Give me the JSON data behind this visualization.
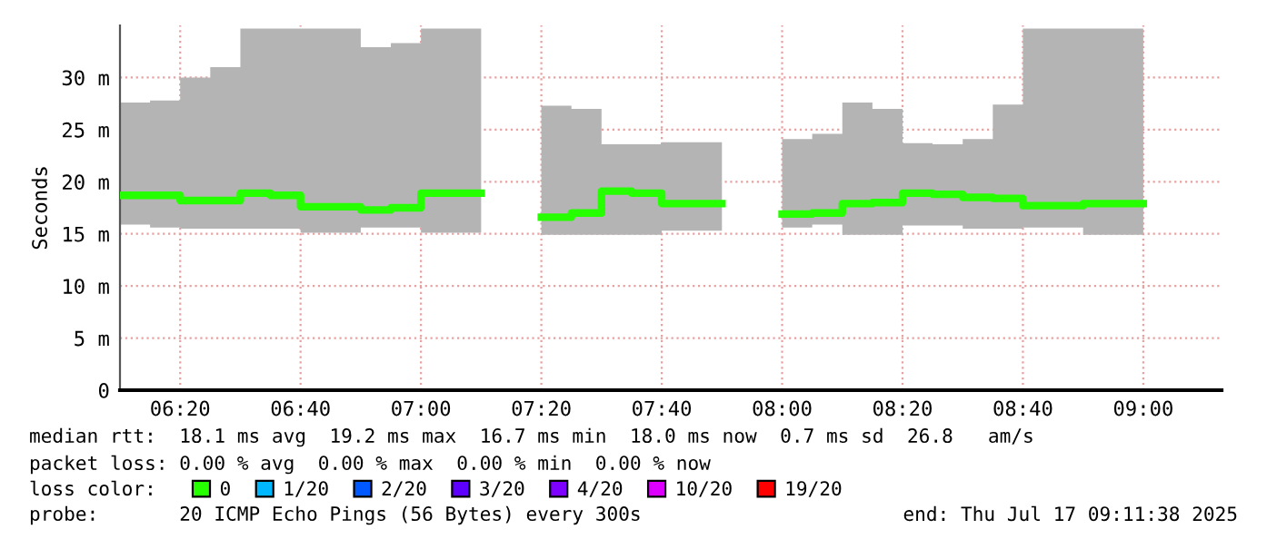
{
  "chart_data": {
    "type": "step",
    "ylabel": "Seconds",
    "x": [
      "2025-07-17T06:10",
      "2025-07-17T06:15",
      "2025-07-17T06:20",
      "2025-07-17T06:25",
      "2025-07-17T06:30",
      "2025-07-17T06:35",
      "2025-07-17T06:40",
      "2025-07-17T06:45",
      "2025-07-17T06:50",
      "2025-07-17T06:55",
      "2025-07-17T07:00",
      "2025-07-17T07:05",
      "2025-07-17T07:10",
      "2025-07-17T07:15",
      "2025-07-17T07:20",
      "2025-07-17T07:25",
      "2025-07-17T07:30",
      "2025-07-17T07:35",
      "2025-07-17T07:40",
      "2025-07-17T07:45",
      "2025-07-17T07:50",
      "2025-07-17T07:55",
      "2025-07-17T08:00",
      "2025-07-17T08:05",
      "2025-07-17T08:10",
      "2025-07-17T08:15",
      "2025-07-17T08:20",
      "2025-07-17T08:25",
      "2025-07-17T08:30",
      "2025-07-17T08:35",
      "2025-07-17T08:40",
      "2025-07-17T08:45",
      "2025-07-17T08:50",
      "2025-07-17T08:55",
      "2025-07-17T09:00"
    ],
    "series": [
      {
        "name": "0",
        "color": "#26ff00",
        "values": [
          18.7,
          18.7,
          18.2,
          18.2,
          18.9,
          18.7,
          17.6,
          17.6,
          17.3,
          17.5,
          18.9,
          18.9,
          null,
          null,
          16.6,
          17.0,
          19.1,
          18.9,
          17.9,
          17.9,
          null,
          null,
          16.9,
          17.0,
          17.9,
          18.0,
          18.9,
          18.8,
          18.5,
          18.4,
          17.7,
          17.7,
          17.9,
          17.9,
          17.9
        ],
        "lower": [
          15.9,
          15.6,
          15.5,
          15.5,
          15.5,
          15.5,
          15.1,
          15.1,
          15.6,
          15.6,
          15.1,
          15.1,
          null,
          null,
          14.9,
          14.9,
          14.9,
          14.9,
          15.3,
          15.3,
          null,
          null,
          15.6,
          15.9,
          14.9,
          14.9,
          15.8,
          15.8,
          15.5,
          15.5,
          15.6,
          15.6,
          14.9,
          14.9,
          14.9
        ],
        "upper": [
          27.6,
          27.8,
          30.0,
          31.0,
          34.7,
          34.7,
          34.7,
          34.7,
          32.9,
          33.3,
          34.7,
          34.7,
          null,
          null,
          27.3,
          27.0,
          23.6,
          23.6,
          23.8,
          23.8,
          null,
          null,
          24.1,
          24.6,
          27.6,
          27.0,
          23.7,
          23.6,
          24.1,
          27.4,
          34.7,
          34.7,
          34.7,
          34.7,
          34.7
        ]
      },
      {
        "name": "1/20",
        "color": "#00b8ff",
        "values": [
          null,
          null,
          null,
          null,
          null,
          null,
          null,
          null,
          null,
          null,
          null,
          null,
          null,
          null,
          null,
          null,
          null,
          null,
          null,
          null,
          null,
          null,
          null,
          null,
          null,
          null,
          null,
          null,
          null,
          null,
          null,
          null,
          null,
          null,
          null
        ]
      },
      {
        "name": "2/20",
        "color": "#0059ff",
        "values": [
          null,
          null,
          null,
          null,
          null,
          null,
          null,
          null,
          null,
          null,
          null,
          null,
          null,
          null,
          null,
          null,
          null,
          null,
          null,
          null,
          null,
          null,
          null,
          null,
          null,
          null,
          null,
          null,
          null,
          null,
          null,
          null,
          null,
          null,
          null
        ]
      },
      {
        "name": "3/20",
        "color": "#5e00ff",
        "values": [
          null,
          null,
          null,
          null,
          null,
          null,
          null,
          null,
          null,
          null,
          null,
          null,
          null,
          null,
          null,
          null,
          null,
          null,
          null,
          null,
          null,
          null,
          null,
          null,
          null,
          null,
          null,
          null,
          null,
          null,
          null,
          null,
          null,
          null,
          null
        ]
      },
      {
        "name": "4/20",
        "color": "#7e00ff",
        "values": [
          null,
          null,
          null,
          null,
          null,
          null,
          null,
          null,
          null,
          null,
          null,
          null,
          null,
          null,
          null,
          null,
          null,
          null,
          null,
          null,
          null,
          null,
          null,
          null,
          null,
          null,
          null,
          null,
          null,
          null,
          null,
          null,
          null,
          null,
          null
        ]
      },
      {
        "name": "10/20",
        "color": "#dd00ff",
        "values": [
          null,
          null,
          null,
          null,
          null,
          null,
          null,
          null,
          null,
          null,
          null,
          null,
          null,
          null,
          null,
          null,
          null,
          null,
          null,
          null,
          null,
          null,
          null,
          null,
          null,
          null,
          null,
          null,
          null,
          null,
          null,
          null,
          null,
          null,
          null
        ]
      },
      {
        "name": "19/20",
        "color": "#ff0000",
        "values": [
          null,
          null,
          null,
          null,
          null,
          null,
          null,
          null,
          null,
          null,
          null,
          null,
          null,
          null,
          null,
          null,
          null,
          null,
          null,
          null,
          null,
          null,
          null,
          null,
          null,
          null,
          null,
          null,
          null,
          null,
          null,
          null,
          null,
          null,
          null
        ]
      }
    ],
    "xlim": [
      "2025-07-17T06:10",
      "2025-07-17T09:13"
    ],
    "xticks": [
      {
        "value": "2025-07-17T06:20",
        "label": "06:20"
      },
      {
        "value": "2025-07-17T06:40",
        "label": "06:40"
      },
      {
        "value": "2025-07-17T07:00",
        "label": "07:00"
      },
      {
        "value": "2025-07-17T07:20",
        "label": "07:20"
      },
      {
        "value": "2025-07-17T07:40",
        "label": "07:40"
      },
      {
        "value": "2025-07-17T08:00",
        "label": "08:00"
      },
      {
        "value": "2025-07-17T08:20",
        "label": "08:20"
      },
      {
        "value": "2025-07-17T08:40",
        "label": "08:40"
      },
      {
        "value": "2025-07-17T09:00",
        "label": "09:00"
      }
    ],
    "ylim": [
      0,
      35
    ],
    "yticks": [
      0,
      {
        "value": 5,
        "label": "5 m"
      },
      {
        "value": 10,
        "label": "10 m"
      },
      {
        "value": 15,
        "label": "15 m"
      },
      {
        "value": 20,
        "label": "20 m"
      },
      {
        "value": 25,
        "label": "25 m"
      },
      {
        "value": 30,
        "label": "30 m"
      }
    ],
    "grid": true,
    "legend": "bottom",
    "annotations": [
      "median rtt:  18.1 ms avg  19.2 ms max  16.7 ms min  18.0 ms now  0.7 ms sd  26.8   am/s",
      "packet loss: 0.00 % avg  0.00 % max  0.00 % min  0.00 % now",
      "loss color:",
      "probe:       20 ICMP Echo Pings (56 Bytes) every 300s",
      "end: Thu Jul 17 09:11:38 2025"
    ]
  }
}
